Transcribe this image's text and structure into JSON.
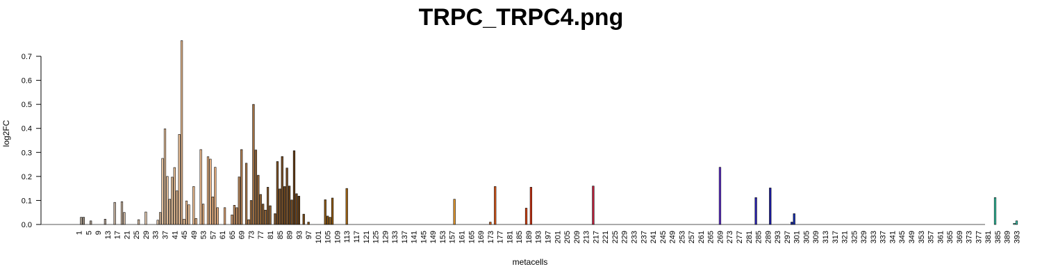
{
  "chart_data": {
    "type": "bar",
    "title": "TRPC_TRPC4.png",
    "xlabel": "metacells",
    "ylabel": "log2FC",
    "ylim": [
      0,
      0.78
    ],
    "yticks": [
      0.0,
      0.1,
      0.2,
      0.3,
      0.4,
      0.5,
      0.6,
      0.7
    ],
    "ytick_labels": [
      "0.0",
      "0.1",
      "0.2",
      "0.3",
      "0.4",
      "0.5",
      "0.6",
      "0.7"
    ],
    "x_range": [
      1,
      394
    ],
    "xtick_labels": [
      "1",
      "5",
      "9",
      "13",
      "17",
      "21",
      "25",
      "29",
      "33",
      "37",
      "41",
      "45",
      "49",
      "53",
      "57",
      "61",
      "65",
      "69",
      "73",
      "77",
      "81",
      "85",
      "89",
      "93",
      "97",
      "101",
      "105",
      "109",
      "113",
      "117",
      "121",
      "125",
      "129",
      "133",
      "137",
      "141",
      "145",
      "149",
      "153",
      "157",
      "161",
      "165",
      "169",
      "173",
      "177",
      "181",
      "185",
      "189",
      "193",
      "197",
      "201",
      "205",
      "209",
      "213",
      "217",
      "221",
      "225",
      "229",
      "233",
      "237",
      "241",
      "245",
      "249",
      "253",
      "257",
      "261",
      "265",
      "269",
      "273",
      "277",
      "281",
      "285",
      "289",
      "293",
      "297",
      "301",
      "305",
      "309",
      "313",
      "317",
      "321",
      "325",
      "329",
      "333",
      "337",
      "341",
      "345",
      "349",
      "353",
      "357",
      "361",
      "365",
      "369",
      "373",
      "377",
      "381",
      "385",
      "389",
      "393"
    ],
    "grid": false,
    "legend": false,
    "bars": [
      {
        "x": 2,
        "value": 0.03,
        "color": "#a89a8c"
      },
      {
        "x": 3,
        "value": 0.03,
        "color": "#a89a8c"
      },
      {
        "x": 6,
        "value": 0.015,
        "color": "#a89a8c"
      },
      {
        "x": 12,
        "value": 0.022,
        "color": "#b3a496"
      },
      {
        "x": 16,
        "value": 0.092,
        "color": "#c4b09d"
      },
      {
        "x": 19,
        "value": 0.095,
        "color": "#c9b4a0"
      },
      {
        "x": 20,
        "value": 0.05,
        "color": "#cbb6a1"
      },
      {
        "x": 26,
        "value": 0.02,
        "color": "#d6bea6"
      },
      {
        "x": 29,
        "value": 0.052,
        "color": "#dcc2a8"
      },
      {
        "x": 34,
        "value": 0.018,
        "color": "#e2c6aa"
      },
      {
        "x": 35,
        "value": 0.05,
        "color": "#e4c6a8"
      },
      {
        "x": 36,
        "value": 0.275,
        "color": "#e8c5a2"
      },
      {
        "x": 37,
        "value": 0.398,
        "color": "#e8c39e"
      },
      {
        "x": 38,
        "value": 0.2,
        "color": "#e9c39d"
      },
      {
        "x": 39,
        "value": 0.105,
        "color": "#eac29b"
      },
      {
        "x": 40,
        "value": 0.197,
        "color": "#eac29a"
      },
      {
        "x": 41,
        "value": 0.237,
        "color": "#ebc198"
      },
      {
        "x": 42,
        "value": 0.14,
        "color": "#ebc097"
      },
      {
        "x": 43,
        "value": 0.375,
        "color": "#ecc096"
      },
      {
        "x": 44,
        "value": 0.765,
        "color": "#ecbf95"
      },
      {
        "x": 45,
        "value": 0.022,
        "color": "#ecbf94"
      },
      {
        "x": 46,
        "value": 0.098,
        "color": "#edbe93"
      },
      {
        "x": 47,
        "value": 0.082,
        "color": "#edbe92"
      },
      {
        "x": 49,
        "value": 0.158,
        "color": "#eebd90"
      },
      {
        "x": 50,
        "value": 0.025,
        "color": "#eebc8f"
      },
      {
        "x": 52,
        "value": 0.312,
        "color": "#efbb8d"
      },
      {
        "x": 53,
        "value": 0.085,
        "color": "#efbb8c"
      },
      {
        "x": 55,
        "value": 0.282,
        "color": "#efb98a"
      },
      {
        "x": 56,
        "value": 0.272,
        "color": "#efb889"
      },
      {
        "x": 57,
        "value": 0.115,
        "color": "#efb788"
      },
      {
        "x": 58,
        "value": 0.238,
        "color": "#efb687"
      },
      {
        "x": 59,
        "value": 0.07,
        "color": "#eeb586"
      },
      {
        "x": 62,
        "value": 0.07,
        "color": "#e3ab7d"
      },
      {
        "x": 65,
        "value": 0.04,
        "color": "#d09a6c"
      },
      {
        "x": 66,
        "value": 0.08,
        "color": "#c99465"
      },
      {
        "x": 67,
        "value": 0.07,
        "color": "#c38f60"
      },
      {
        "x": 68,
        "value": 0.198,
        "color": "#bd8a5b"
      },
      {
        "x": 69,
        "value": 0.312,
        "color": "#b88556"
      },
      {
        "x": 71,
        "value": 0.255,
        "color": "#b07e4f"
      },
      {
        "x": 72,
        "value": 0.02,
        "color": "#ac7a4b"
      },
      {
        "x": 73,
        "value": 0.1,
        "color": "#a87748"
      },
      {
        "x": 74,
        "value": 0.5,
        "color": "#a47345"
      },
      {
        "x": 75,
        "value": 0.31,
        "color": "#a07042"
      },
      {
        "x": 76,
        "value": 0.205,
        "color": "#9c6c3e"
      },
      {
        "x": 77,
        "value": 0.125,
        "color": "#98693b"
      },
      {
        "x": 78,
        "value": 0.085,
        "color": "#946638"
      },
      {
        "x": 79,
        "value": 0.06,
        "color": "#916335"
      },
      {
        "x": 80,
        "value": 0.155,
        "color": "#8d6032"
      },
      {
        "x": 81,
        "value": 0.078,
        "color": "#8a5d30"
      },
      {
        "x": 83,
        "value": 0.045,
        "color": "#84572b"
      },
      {
        "x": 84,
        "value": 0.262,
        "color": "#815428"
      },
      {
        "x": 85,
        "value": 0.148,
        "color": "#7e5226"
      },
      {
        "x": 86,
        "value": 0.283,
        "color": "#7b4f24"
      },
      {
        "x": 87,
        "value": 0.158,
        "color": "#784d22"
      },
      {
        "x": 88,
        "value": 0.235,
        "color": "#754a20"
      },
      {
        "x": 89,
        "value": 0.16,
        "color": "#72481e"
      },
      {
        "x": 90,
        "value": 0.102,
        "color": "#70461c"
      },
      {
        "x": 91,
        "value": 0.307,
        "color": "#6d431a"
      },
      {
        "x": 92,
        "value": 0.128,
        "color": "#6a4118"
      },
      {
        "x": 93,
        "value": 0.118,
        "color": "#683f16"
      },
      {
        "x": 95,
        "value": 0.043,
        "color": "#7a4a16"
      },
      {
        "x": 97,
        "value": 0.01,
        "color": "#8a5414"
      },
      {
        "x": 104,
        "value": 0.103,
        "color": "#8f5a14"
      },
      {
        "x": 105,
        "value": 0.035,
        "color": "#925c14"
      },
      {
        "x": 106,
        "value": 0.03,
        "color": "#955e14"
      },
      {
        "x": 107,
        "value": 0.11,
        "color": "#985f14"
      },
      {
        "x": 113,
        "value": 0.15,
        "color": "#a86a16"
      },
      {
        "x": 158,
        "value": 0.105,
        "color": "#e69a2e"
      },
      {
        "x": 173,
        "value": 0.01,
        "color": "#d9641e"
      },
      {
        "x": 175,
        "value": 0.158,
        "color": "#de5a1c"
      },
      {
        "x": 188,
        "value": 0.068,
        "color": "#e04a18"
      },
      {
        "x": 190,
        "value": 0.155,
        "color": "#dd3a18"
      },
      {
        "x": 216,
        "value": 0.16,
        "color": "#c01e3c"
      },
      {
        "x": 269,
        "value": 0.238,
        "color": "#6a3ad6"
      },
      {
        "x": 284,
        "value": 0.112,
        "color": "#2a22b8"
      },
      {
        "x": 290,
        "value": 0.152,
        "color": "#1c1ca8"
      },
      {
        "x": 299,
        "value": 0.01,
        "color": "#1a28b0"
      },
      {
        "x": 300,
        "value": 0.045,
        "color": "#1830b6"
      },
      {
        "x": 384,
        "value": 0.112,
        "color": "#3cc8a8"
      },
      {
        "x": 392,
        "value": 0.005,
        "color": "#40c8b0"
      },
      {
        "x": 393,
        "value": 0.015,
        "color": "#44ccb4"
      }
    ]
  }
}
